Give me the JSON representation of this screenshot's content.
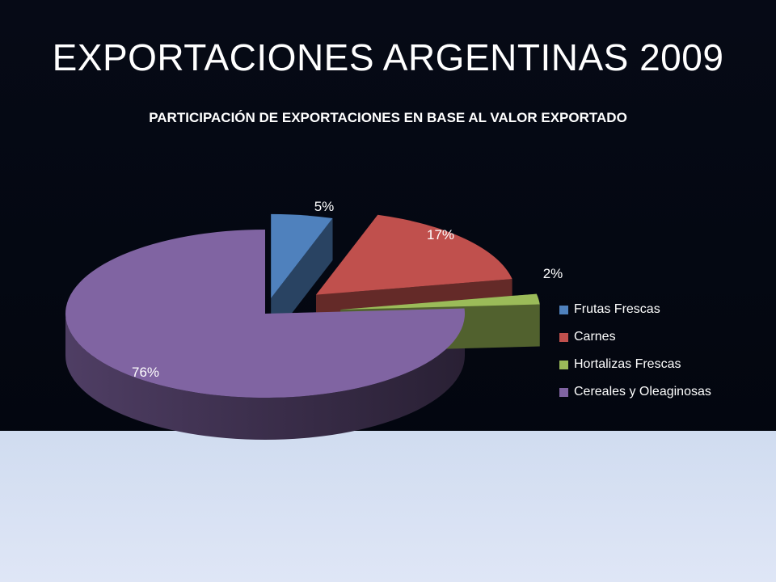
{
  "slide": {
    "title": "EXPORTACIONES ARGENTINAS 2009"
  },
  "chart_data": {
    "type": "pie",
    "title": "PARTICIPACIÓN DE EXPORTACIONES EN BASE AL VALOR EXPORTADO",
    "categories": [
      "Frutas Frescas",
      "Carnes",
      "Hortalizas Frescas",
      "Cereales y Oleaginosas"
    ],
    "values": [
      5,
      17,
      2,
      76
    ],
    "data_labels": [
      "5%",
      "17%",
      "2%",
      "76%"
    ],
    "colors": [
      "#4f81bd",
      "#c0504d",
      "#9bbb59",
      "#8064a2"
    ],
    "style": "3d-exploded",
    "legend_position": "right"
  }
}
